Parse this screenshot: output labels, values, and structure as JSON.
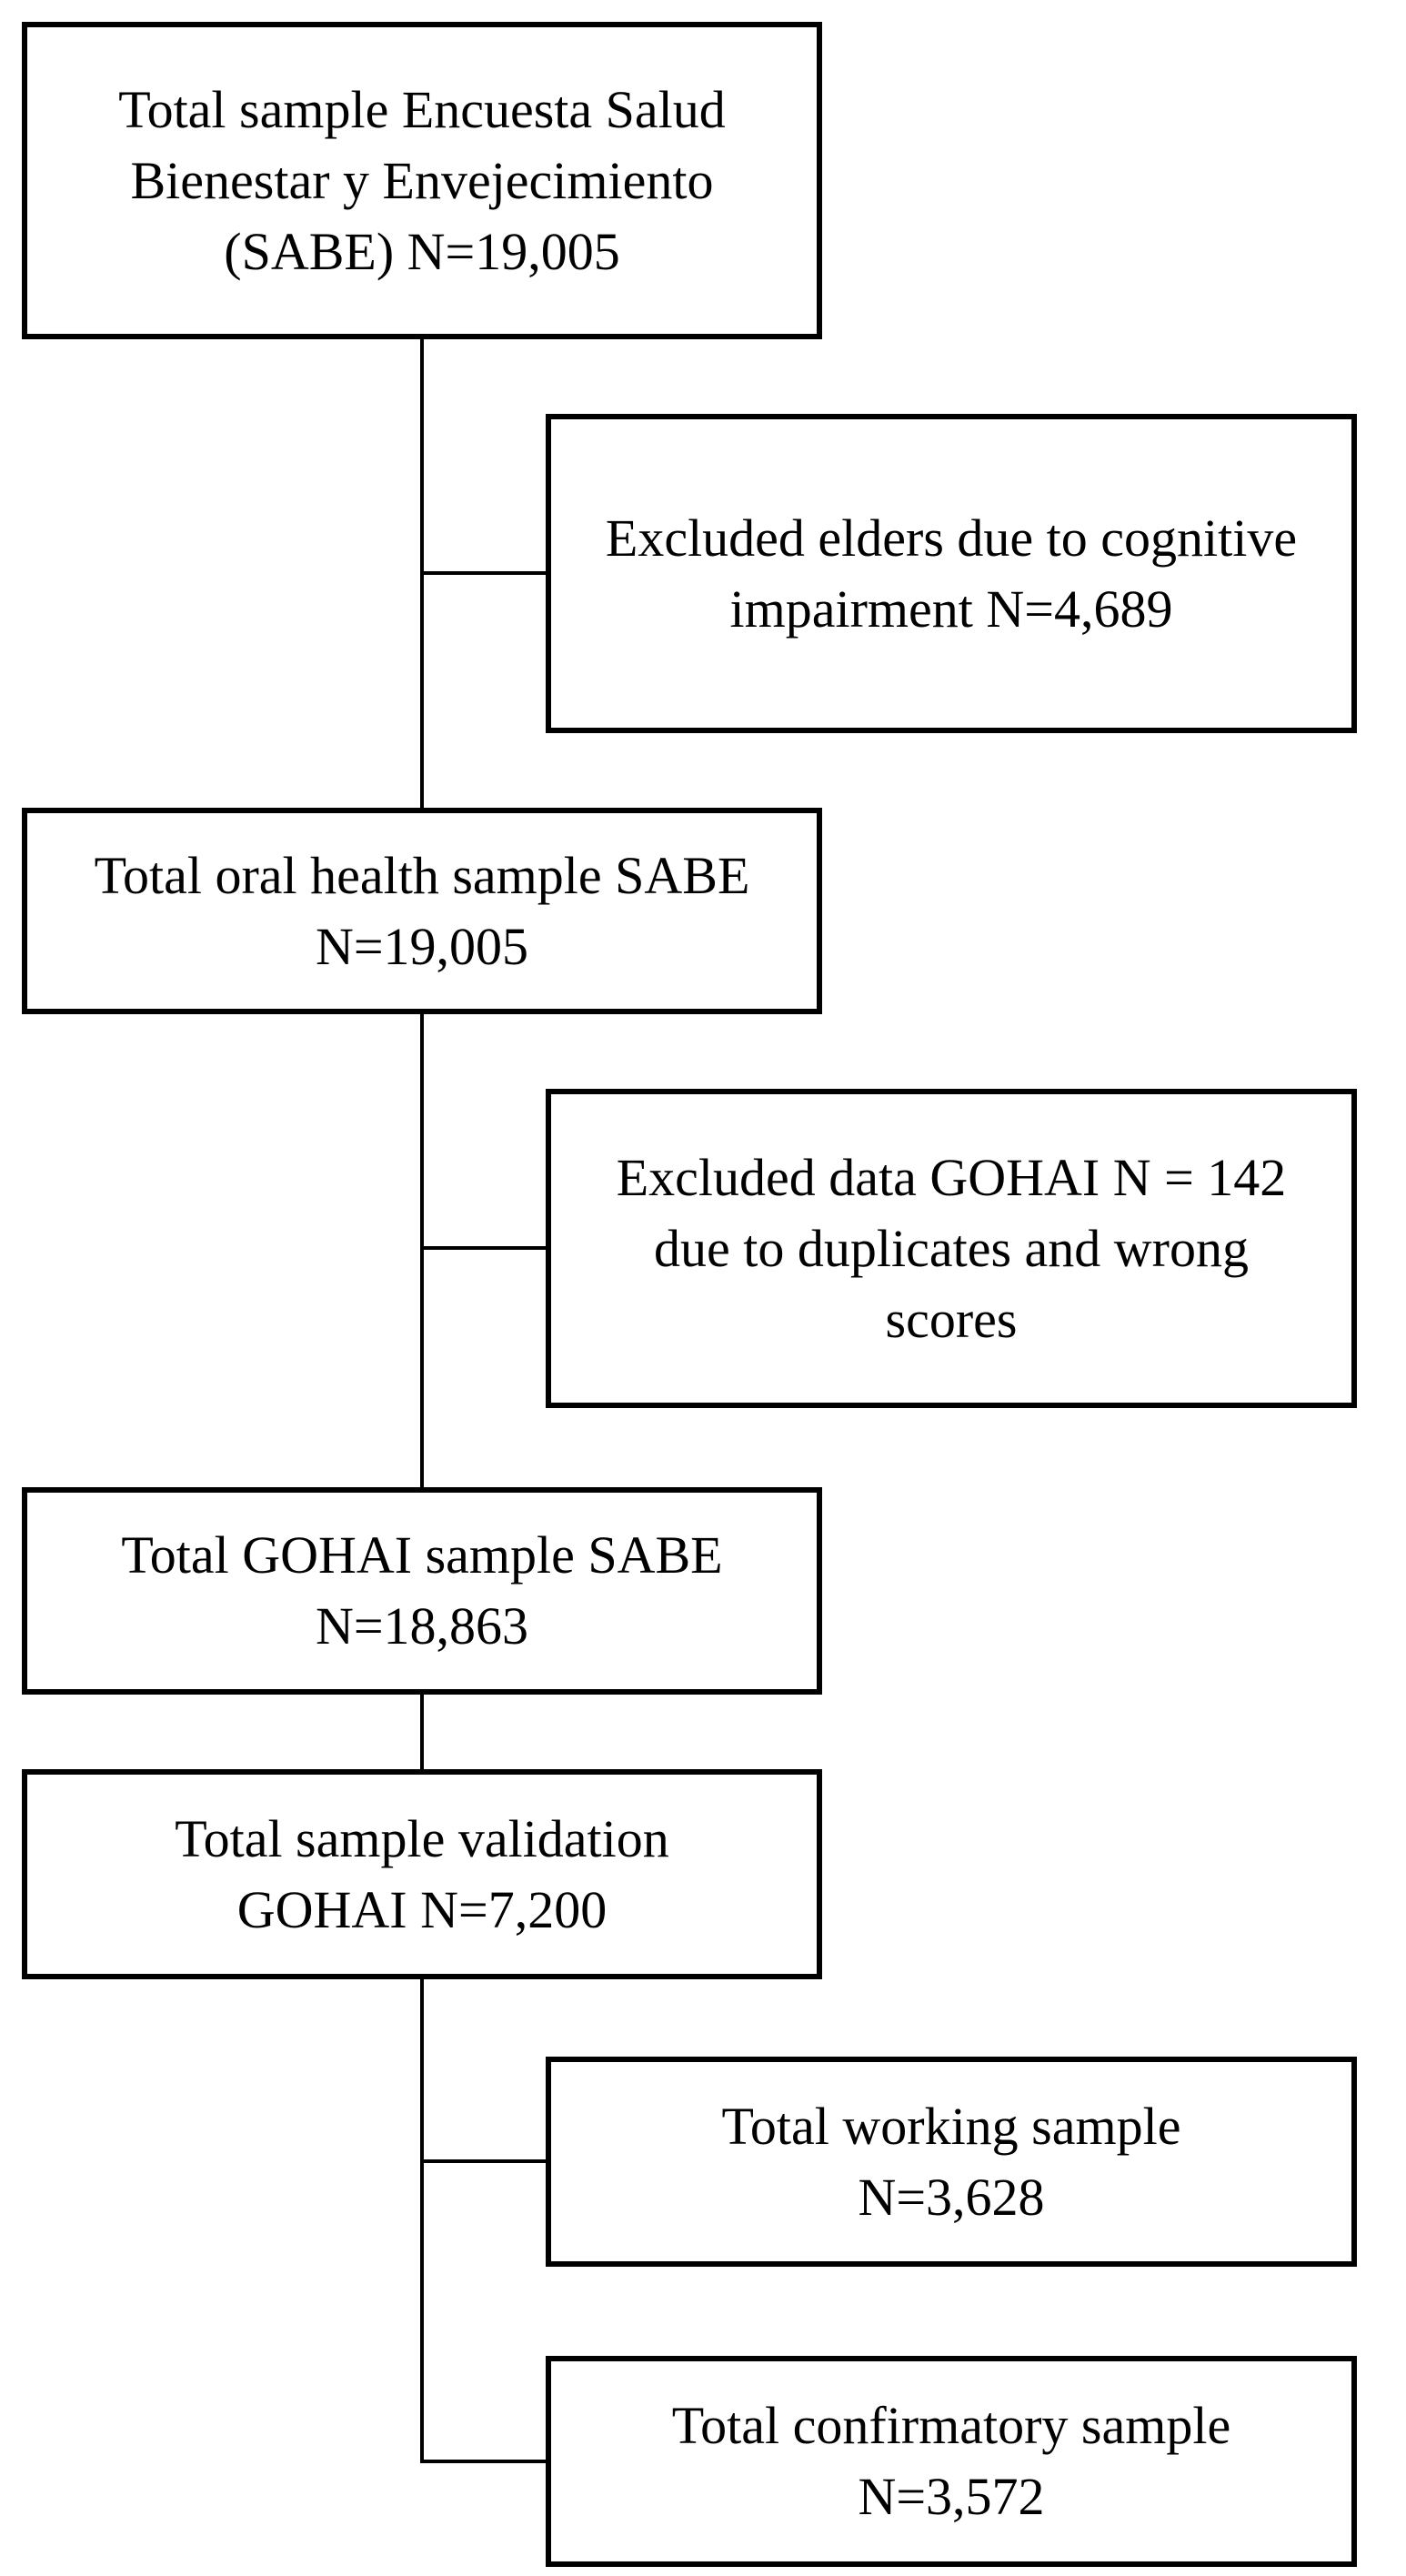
{
  "flowchart": {
    "type": "participant-flow-diagram",
    "colors": {
      "box_border": "#000000",
      "box_fill": "#ffffff",
      "text": "#000000",
      "connector": "#000000"
    },
    "boxes": [
      {
        "id": "total-sample-sabe",
        "column": "left",
        "n": "19,005",
        "lines": [
          "Total sample Encuesta Salud",
          "Bienestar y Envejecimiento",
          "(SABE) N=19,005"
        ]
      },
      {
        "id": "excluded-cognitive-impairment",
        "column": "right",
        "n": "4,689",
        "lines": [
          "Excluded elders due to cognitive",
          "impairment N=4,689"
        ]
      },
      {
        "id": "total-oral-health-sample",
        "column": "left",
        "n": "19,005",
        "lines": [
          "Total oral health sample SABE",
          "N=19,005"
        ]
      },
      {
        "id": "excluded-gohai-data",
        "column": "right",
        "n": "142",
        "lines": [
          "Excluded data GOHAI N = 142",
          "due to duplicates and wrong",
          "scores"
        ]
      },
      {
        "id": "total-gohai-sample",
        "column": "left",
        "n": "18,863",
        "lines": [
          "Total GOHAI sample SABE",
          "N=18,863"
        ]
      },
      {
        "id": "total-sample-validation",
        "column": "left",
        "n": "7,200",
        "lines": [
          "Total sample validation",
          "GOHAI N=7,200"
        ]
      },
      {
        "id": "total-working-sample",
        "column": "right",
        "n": "3,628",
        "lines": [
          "Total working sample",
          "N=3,628"
        ]
      },
      {
        "id": "total-confirmatory-sample",
        "column": "right",
        "n": "3,572",
        "lines": [
          "Total confirmatory sample",
          "N=3,572"
        ]
      }
    ]
  }
}
